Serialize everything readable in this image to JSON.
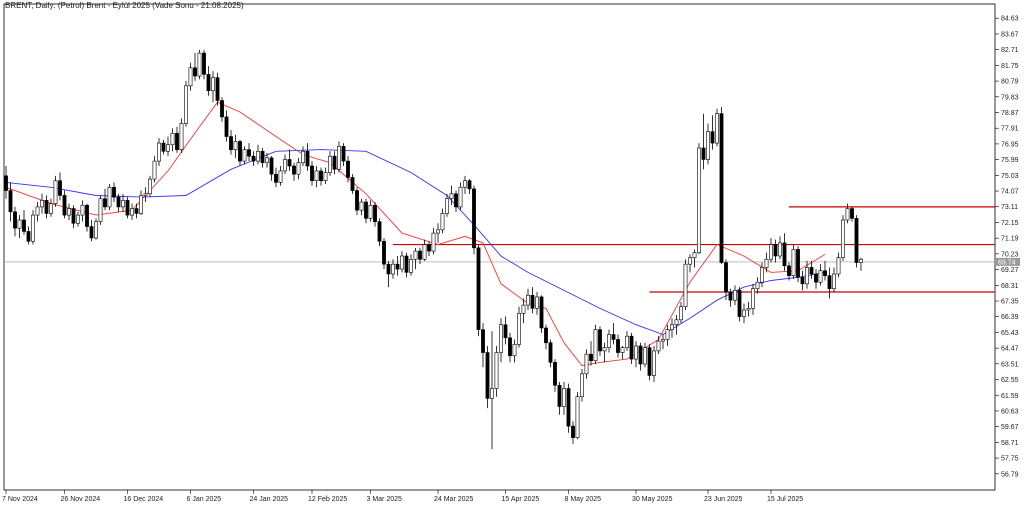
{
  "chart_data": {
    "type": "candlestick",
    "title": "BRENT, Daily:  (Petrol) Brent - Eylül 2025 (Vade Sonu - 21.08.2025)",
    "ylim": [
      55.8,
      85.5
    ],
    "y_ticks": [
      "84.63",
      "83.67",
      "82.71",
      "81.75",
      "80.79",
      "79.83",
      "78.87",
      "77.91",
      "76.95",
      "75.99",
      "75.03",
      "74.07",
      "73.11",
      "72.15",
      "71.19",
      "70.23",
      "69.27",
      "68.31",
      "67.35",
      "66.39",
      "65.43",
      "64.47",
      "63.51",
      "62.55",
      "61.59",
      "60.63",
      "59.67",
      "58.71",
      "57.75",
      "56.79"
    ],
    "x_ticks": [
      {
        "label": "7 Nov 2024",
        "index": 0
      },
      {
        "label": "26 Nov 2024",
        "index": 13
      },
      {
        "label": "16 Dec 2024",
        "index": 27
      },
      {
        "label": "6 Jan 2025",
        "index": 41
      },
      {
        "label": "24 Jan 2025",
        "index": 55
      },
      {
        "label": "12 Feb 2025",
        "index": 68
      },
      {
        "label": "3 Mar 2025",
        "index": 81
      },
      {
        "label": "24 Mar 2025",
        "index": 96
      },
      {
        "label": "15 Apr 2025",
        "index": 111
      },
      {
        "label": "8 May 2025",
        "index": 125
      },
      {
        "label": "30 May 2025",
        "index": 140
      },
      {
        "label": "23 Jun 2025",
        "index": 156
      },
      {
        "label": "15 Jul 2025",
        "index": 170
      }
    ],
    "current_price": "69.74",
    "current_price_value": 69.74,
    "horizontal_lines": [
      {
        "value": 73.1,
        "from_index": 174,
        "color": "#cc0000"
      },
      {
        "value": 70.8,
        "from_index": 86,
        "color": "#cc0000"
      },
      {
        "value": 67.9,
        "from_index": 143,
        "color": "#cc0000"
      }
    ],
    "ma_fast_color": "#ff3333",
    "ma_slow_color": "#3333ff",
    "up_color": "#ffffff",
    "down_color": "#000000",
    "candles": [
      [
        75.0,
        75.6,
        73.6,
        74.1
      ],
      [
        74.1,
        74.6,
        72.2,
        72.8
      ],
      [
        72.8,
        73.1,
        71.3,
        71.8
      ],
      [
        71.8,
        72.6,
        71.2,
        72.3
      ],
      [
        72.3,
        72.9,
        71.4,
        71.6
      ],
      [
        71.6,
        71.9,
        70.8,
        71.0
      ],
      [
        71.0,
        72.9,
        70.8,
        72.6
      ],
      [
        72.6,
        73.4,
        72.2,
        73.1
      ],
      [
        73.1,
        73.9,
        72.7,
        73.5
      ],
      [
        73.5,
        73.8,
        72.4,
        72.7
      ],
      [
        72.7,
        73.6,
        72.5,
        73.3
      ],
      [
        73.3,
        75.0,
        73.1,
        74.7
      ],
      [
        74.7,
        75.2,
        73.5,
        73.8
      ],
      [
        73.8,
        74.1,
        72.4,
        72.6
      ],
      [
        72.6,
        73.3,
        72.3,
        73.0
      ],
      [
        73.0,
        73.2,
        71.8,
        72.1
      ],
      [
        72.1,
        72.8,
        71.9,
        72.6
      ],
      [
        72.6,
        73.5,
        72.2,
        73.2
      ],
      [
        73.2,
        73.3,
        71.6,
        71.9
      ],
      [
        71.9,
        72.3,
        71.0,
        71.2
      ],
      [
        71.2,
        72.4,
        71.1,
        72.2
      ],
      [
        72.2,
        73.8,
        72.0,
        73.6
      ],
      [
        73.6,
        74.2,
        72.9,
        73.1
      ],
      [
        73.1,
        74.5,
        72.9,
        74.3
      ],
      [
        74.3,
        74.6,
        73.4,
        73.7
      ],
      [
        73.7,
        73.9,
        72.8,
        73.1
      ],
      [
        73.1,
        73.9,
        72.8,
        73.5
      ],
      [
        73.5,
        73.7,
        72.4,
        72.6
      ],
      [
        72.6,
        73.3,
        72.3,
        73.0
      ],
      [
        73.0,
        73.3,
        72.4,
        72.7
      ],
      [
        72.7,
        74.1,
        72.6,
        73.8
      ],
      [
        73.8,
        74.3,
        73.4,
        73.9
      ],
      [
        73.9,
        75.0,
        73.7,
        74.8
      ],
      [
        74.8,
        76.2,
        74.6,
        75.9
      ],
      [
        75.9,
        77.3,
        75.6,
        77.0
      ],
      [
        77.0,
        77.2,
        76.3,
        76.5
      ],
      [
        76.5,
        77.4,
        76.2,
        76.9
      ],
      [
        76.9,
        77.9,
        76.5,
        77.6
      ],
      [
        77.6,
        78.0,
        76.4,
        76.6
      ],
      [
        76.6,
        78.5,
        76.4,
        78.2
      ],
      [
        78.2,
        80.8,
        78.0,
        80.5
      ],
      [
        80.5,
        81.9,
        80.2,
        81.6
      ],
      [
        81.6,
        82.5,
        80.8,
        81.1
      ],
      [
        81.1,
        82.7,
        80.9,
        82.5
      ],
      [
        82.5,
        82.7,
        80.9,
        81.2
      ],
      [
        81.2,
        81.7,
        79.9,
        80.2
      ],
      [
        80.2,
        81.4,
        79.5,
        81.0
      ],
      [
        81.0,
        81.3,
        79.3,
        79.6
      ],
      [
        79.6,
        79.8,
        78.3,
        78.6
      ],
      [
        78.6,
        79.0,
        77.1,
        77.4
      ],
      [
        77.4,
        77.8,
        76.3,
        76.6
      ],
      [
        76.6,
        77.5,
        76.1,
        77.1
      ],
      [
        77.1,
        77.2,
        75.6,
        75.9
      ],
      [
        75.9,
        76.8,
        75.7,
        76.6
      ],
      [
        76.6,
        77.0,
        75.9,
        76.2
      ],
      [
        76.2,
        76.5,
        75.6,
        75.9
      ],
      [
        75.9,
        76.9,
        75.7,
        76.5
      ],
      [
        76.5,
        76.7,
        75.5,
        75.8
      ],
      [
        75.8,
        76.4,
        75.5,
        76.1
      ],
      [
        76.1,
        76.2,
        74.7,
        75.1
      ],
      [
        75.1,
        75.5,
        74.3,
        74.6
      ],
      [
        74.6,
        75.6,
        74.4,
        75.3
      ],
      [
        75.3,
        76.3,
        75.1,
        76.0
      ],
      [
        76.0,
        76.6,
        75.3,
        75.6
      ],
      [
        75.6,
        75.8,
        74.7,
        75.1
      ],
      [
        75.1,
        76.1,
        74.8,
        75.8
      ],
      [
        75.8,
        76.8,
        75.6,
        76.5
      ],
      [
        76.5,
        77.0,
        75.3,
        75.6
      ],
      [
        75.6,
        75.9,
        74.4,
        74.7
      ],
      [
        74.7,
        75.6,
        74.3,
        75.3
      ],
      [
        75.3,
        75.5,
        74.4,
        74.7
      ],
      [
        74.7,
        75.5,
        74.5,
        75.2
      ],
      [
        75.2,
        76.5,
        75.0,
        76.2
      ],
      [
        76.2,
        76.5,
        75.1,
        75.4
      ],
      [
        75.4,
        77.1,
        75.2,
        76.8
      ],
      [
        76.8,
        77.0,
        75.6,
        75.9
      ],
      [
        75.9,
        76.2,
        74.6,
        74.9
      ],
      [
        74.9,
        75.1,
        73.9,
        74.1
      ],
      [
        74.1,
        74.3,
        72.6,
        72.9
      ],
      [
        72.9,
        73.6,
        72.6,
        73.4
      ],
      [
        73.4,
        73.6,
        72.1,
        72.4
      ],
      [
        72.4,
        73.5,
        72.2,
        73.2
      ],
      [
        73.2,
        73.4,
        71.9,
        72.2
      ],
      [
        72.2,
        72.4,
        70.7,
        71.0
      ],
      [
        71.0,
        71.2,
        69.3,
        69.6
      ],
      [
        69.6,
        69.8,
        68.2,
        69.0
      ],
      [
        69.0,
        69.9,
        68.7,
        69.6
      ],
      [
        69.6,
        70.1,
        68.9,
        69.3
      ],
      [
        69.3,
        70.4,
        69.1,
        70.1
      ],
      [
        70.1,
        70.3,
        68.8,
        69.1
      ],
      [
        69.1,
        70.2,
        68.9,
        69.9
      ],
      [
        69.9,
        70.6,
        69.3,
        70.4
      ],
      [
        70.4,
        70.6,
        69.6,
        69.9
      ],
      [
        69.9,
        71.1,
        69.8,
        70.8
      ],
      [
        70.8,
        71.0,
        70.1,
        70.4
      ],
      [
        70.4,
        71.8,
        70.2,
        71.5
      ],
      [
        71.5,
        72.1,
        70.9,
        71.7
      ],
      [
        71.7,
        73.0,
        71.5,
        72.7
      ],
      [
        72.7,
        73.9,
        72.5,
        73.6
      ],
      [
        73.6,
        74.4,
        73.2,
        73.9
      ],
      [
        73.9,
        74.1,
        72.8,
        73.1
      ],
      [
        73.1,
        74.6,
        72.9,
        74.3
      ],
      [
        74.3,
        75.0,
        73.9,
        74.7
      ],
      [
        74.7,
        74.8,
        73.9,
        74.2
      ],
      [
        74.2,
        74.4,
        70.2,
        70.6
      ],
      [
        70.6,
        70.8,
        65.2,
        65.6
      ],
      [
        65.6,
        66.0,
        63.3,
        64.2
      ],
      [
        64.2,
        64.6,
        60.8,
        61.4
      ],
      [
        61.4,
        65.5,
        58.3,
        62.0
      ],
      [
        62.0,
        64.6,
        61.5,
        64.2
      ],
      [
        64.2,
        66.3,
        63.6,
        65.9
      ],
      [
        65.9,
        66.4,
        64.7,
        65.1
      ],
      [
        65.1,
        65.4,
        63.6,
        64.0
      ],
      [
        64.0,
        65.0,
        63.6,
        64.7
      ],
      [
        64.7,
        67.0,
        64.5,
        66.6
      ],
      [
        66.6,
        67.5,
        66.0,
        67.1
      ],
      [
        67.1,
        68.1,
        66.8,
        67.7
      ],
      [
        67.7,
        68.2,
        66.6,
        66.9
      ],
      [
        66.9,
        67.9,
        66.5,
        67.6
      ],
      [
        67.6,
        67.7,
        65.4,
        65.7
      ],
      [
        65.7,
        65.9,
        64.4,
        64.8
      ],
      [
        64.8,
        65.0,
        63.3,
        63.6
      ],
      [
        63.6,
        63.8,
        61.8,
        62.2
      ],
      [
        62.2,
        62.4,
        60.4,
        60.9
      ],
      [
        60.9,
        62.4,
        60.4,
        62.0
      ],
      [
        62.0,
        62.3,
        59.3,
        59.7
      ],
      [
        59.7,
        60.0,
        58.6,
        59.0
      ],
      [
        59.0,
        61.8,
        58.9,
        61.5
      ],
      [
        61.5,
        63.2,
        61.2,
        62.9
      ],
      [
        62.9,
        64.4,
        62.6,
        64.1
      ],
      [
        64.1,
        64.9,
        63.4,
        63.7
      ],
      [
        63.7,
        65.9,
        63.5,
        65.6
      ],
      [
        65.6,
        65.8,
        64.0,
        64.3
      ],
      [
        64.3,
        64.8,
        63.6,
        64.5
      ],
      [
        64.5,
        65.6,
        64.2,
        65.3
      ],
      [
        65.3,
        66.0,
        64.7,
        65.0
      ],
      [
        65.0,
        65.3,
        63.9,
        64.2
      ],
      [
        64.2,
        64.6,
        63.8,
        64.5
      ],
      [
        64.5,
        65.5,
        64.3,
        65.2
      ],
      [
        65.2,
        65.4,
        63.5,
        63.8
      ],
      [
        63.8,
        64.9,
        63.3,
        64.6
      ],
      [
        64.6,
        64.8,
        63.1,
        63.5
      ],
      [
        63.5,
        64.8,
        63.3,
        64.5
      ],
      [
        64.5,
        64.7,
        62.5,
        62.8
      ],
      [
        62.8,
        64.6,
        62.4,
        64.3
      ],
      [
        64.3,
        65.2,
        64.1,
        64.9
      ],
      [
        64.9,
        65.3,
        64.4,
        65.0
      ],
      [
        65.0,
        65.9,
        64.6,
        65.6
      ],
      [
        65.6,
        66.3,
        65.1,
        65.9
      ],
      [
        65.9,
        66.5,
        65.3,
        66.2
      ],
      [
        66.2,
        67.3,
        66.0,
        67.0
      ],
      [
        67.0,
        69.9,
        66.8,
        69.6
      ],
      [
        69.6,
        70.2,
        69.1,
        70.0
      ],
      [
        70.0,
        70.5,
        69.4,
        70.3
      ],
      [
        70.3,
        77.0,
        70.2,
        76.7
      ],
      [
        76.7,
        78.8,
        75.4,
        76.0
      ],
      [
        76.0,
        78.2,
        75.7,
        77.7
      ],
      [
        77.7,
        78.7,
        76.6,
        77.0
      ],
      [
        77.0,
        79.1,
        76.8,
        78.8
      ],
      [
        78.8,
        79.2,
        69.6,
        69.7
      ],
      [
        69.7,
        69.9,
        67.4,
        67.9
      ],
      [
        67.9,
        68.1,
        67.0,
        67.4
      ],
      [
        67.4,
        68.3,
        67.1,
        68.0
      ],
      [
        68.0,
        68.2,
        66.1,
        66.4
      ],
      [
        66.4,
        67.2,
        66.0,
        66.8
      ],
      [
        66.8,
        67.3,
        66.4,
        66.9
      ],
      [
        66.9,
        68.4,
        66.5,
        68.1
      ],
      [
        68.1,
        68.8,
        67.8,
        68.5
      ],
      [
        68.5,
        69.7,
        68.2,
        69.4
      ],
      [
        69.4,
        70.3,
        69.1,
        69.9
      ],
      [
        69.9,
        71.2,
        69.7,
        70.8
      ],
      [
        70.8,
        71.1,
        69.7,
        70.1
      ],
      [
        70.1,
        71.3,
        69.9,
        70.9
      ],
      [
        70.9,
        71.5,
        69.2,
        69.5
      ],
      [
        69.5,
        69.7,
        68.6,
        68.9
      ],
      [
        68.9,
        70.8,
        68.7,
        70.5
      ],
      [
        70.5,
        70.7,
        68.5,
        68.8
      ],
      [
        68.8,
        69.2,
        68.0,
        68.4
      ],
      [
        68.4,
        69.8,
        68.1,
        69.4
      ],
      [
        69.4,
        69.8,
        68.7,
        69.0
      ],
      [
        69.0,
        69.3,
        68.1,
        68.5
      ],
      [
        68.5,
        69.6,
        68.3,
        69.2
      ],
      [
        69.2,
        69.8,
        68.6,
        68.9
      ],
      [
        68.9,
        69.4,
        67.5,
        68.1
      ],
      [
        68.1,
        69.4,
        67.9,
        69.0
      ],
      [
        69.0,
        70.3,
        68.8,
        70.0
      ],
      [
        70.0,
        72.6,
        69.8,
        72.3
      ],
      [
        72.3,
        73.3,
        72.1,
        73.0
      ],
      [
        73.0,
        73.1,
        72.2,
        72.4
      ],
      [
        72.4,
        72.6,
        69.4,
        69.7
      ],
      [
        69.7,
        70.0,
        69.2,
        69.9
      ]
    ],
    "ma_fast": [
      [
        0,
        74.3
      ],
      [
        10,
        73.3
      ],
      [
        20,
        72.6
      ],
      [
        28,
        72.9
      ],
      [
        36,
        75.3
      ],
      [
        43,
        78.0
      ],
      [
        47,
        79.5
      ],
      [
        52,
        78.9
      ],
      [
        60,
        77.4
      ],
      [
        66,
        76.3
      ],
      [
        72,
        75.8
      ],
      [
        80,
        73.9
      ],
      [
        88,
        71.5
      ],
      [
        96,
        70.8
      ],
      [
        102,
        71.3
      ],
      [
        106,
        70.9
      ],
      [
        110,
        68.4
      ],
      [
        116,
        67.2
      ],
      [
        120,
        66.9
      ],
      [
        124,
        64.8
      ],
      [
        128,
        63.4
      ],
      [
        132,
        63.6
      ],
      [
        138,
        63.8
      ],
      [
        145,
        65.0
      ],
      [
        152,
        68.5
      ],
      [
        158,
        70.8
      ],
      [
        164,
        70.1
      ],
      [
        170,
        69.1
      ],
      [
        176,
        69.2
      ],
      [
        182,
        70.2
      ]
    ],
    "ma_slow": [
      [
        0,
        74.6
      ],
      [
        10,
        74.3
      ],
      [
        20,
        73.8
      ],
      [
        30,
        73.7
      ],
      [
        40,
        73.8
      ],
      [
        50,
        75.4
      ],
      [
        60,
        76.5
      ],
      [
        70,
        76.6
      ],
      [
        80,
        76.5
      ],
      [
        90,
        75.2
      ],
      [
        98,
        73.8
      ],
      [
        104,
        72.0
      ],
      [
        110,
        70.1
      ],
      [
        116,
        69.1
      ],
      [
        124,
        68.0
      ],
      [
        132,
        66.9
      ],
      [
        140,
        65.9
      ],
      [
        146,
        65.3
      ],
      [
        152,
        66.3
      ],
      [
        158,
        67.4
      ],
      [
        164,
        68.2
      ],
      [
        170,
        68.6
      ],
      [
        176,
        68.8
      ],
      [
        182,
        69.1
      ]
    ]
  }
}
